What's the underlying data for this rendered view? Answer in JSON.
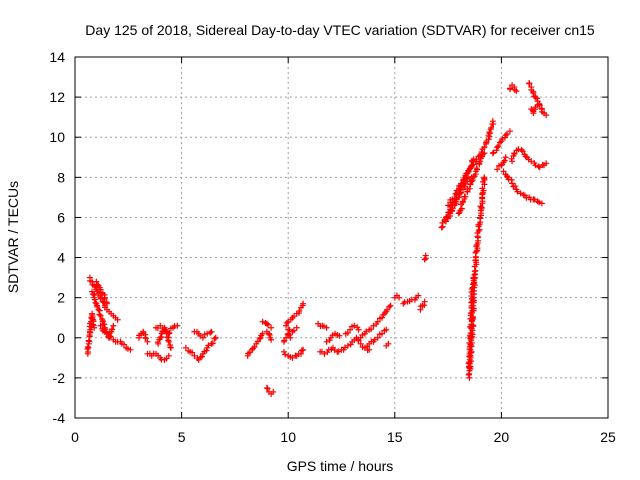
{
  "chart_data": {
    "type": "scatter",
    "title": "Day 125 of 2018, Sidereal Day-to-day VTEC variation (SDTVAR) for receiver cn15",
    "xlabel": "GPS time / hours",
    "ylabel": "SDTVAR / TECUs",
    "xlim": [
      0,
      25
    ],
    "ylim": [
      -4,
      14
    ],
    "xticks": [
      0,
      5,
      10,
      15,
      20,
      25
    ],
    "yticks": [
      -4,
      -2,
      0,
      2,
      4,
      6,
      8,
      10,
      12,
      14
    ],
    "grid": true,
    "marker": "+",
    "color": "#ff0000",
    "segments": [
      [
        [
          0.6,
          -0.8
        ],
        [
          0.65,
          -0.3
        ],
        [
          0.7,
          0.3
        ],
        [
          0.75,
          0.8
        ],
        [
          0.8,
          1.2
        ],
        [
          0.85,
          0.9
        ],
        [
          0.9,
          0.5
        ]
      ],
      [
        [
          0.7,
          3.0
        ],
        [
          0.8,
          2.8
        ],
        [
          0.9,
          2.6
        ],
        [
          1.0,
          2.4
        ],
        [
          1.1,
          2.2
        ],
        [
          1.2,
          2.0
        ],
        [
          1.3,
          1.8
        ],
        [
          1.4,
          1.6
        ],
        [
          1.5,
          1.4
        ],
        [
          1.6,
          1.3
        ],
        [
          1.7,
          1.2
        ],
        [
          1.8,
          1.1
        ],
        [
          1.9,
          1.0
        ],
        [
          2.0,
          0.9
        ]
      ],
      [
        [
          0.8,
          2.3
        ],
        [
          0.9,
          2.0
        ],
        [
          1.0,
          1.7
        ],
        [
          1.1,
          1.4
        ],
        [
          1.2,
          1.1
        ],
        [
          1.3,
          0.8
        ],
        [
          1.4,
          0.5
        ],
        [
          1.5,
          0.2
        ],
        [
          1.6,
          0.0
        ],
        [
          1.7,
          0.3
        ],
        [
          1.8,
          0.6
        ]
      ],
      [
        [
          1.0,
          2.8
        ],
        [
          1.1,
          2.6
        ],
        [
          1.2,
          2.4
        ],
        [
          1.3,
          2.2
        ],
        [
          1.4,
          2.0
        ],
        [
          1.5,
          1.7
        ]
      ],
      [
        [
          1.2,
          0.6
        ],
        [
          1.4,
          0.3
        ],
        [
          1.6,
          0.1
        ],
        [
          1.8,
          -0.1
        ],
        [
          2.0,
          -0.2
        ],
        [
          2.2,
          -0.3
        ],
        [
          2.4,
          -0.5
        ],
        [
          2.6,
          -0.6
        ]
      ],
      [
        [
          3.0,
          0.0
        ],
        [
          3.1,
          0.2
        ],
        [
          3.2,
          0.3
        ],
        [
          3.3,
          0.0
        ],
        [
          3.4,
          -0.2
        ]
      ],
      [
        [
          3.4,
          -0.8
        ],
        [
          3.6,
          -0.9
        ],
        [
          3.8,
          -0.8
        ],
        [
          4.0,
          -1.0
        ],
        [
          4.2,
          -1.1
        ],
        [
          4.4,
          -0.9
        ]
      ],
      [
        [
          3.8,
          0.5
        ],
        [
          4.0,
          0.6
        ],
        [
          4.2,
          0.4
        ],
        [
          4.4,
          0.2
        ],
        [
          4.6,
          0.5
        ],
        [
          4.8,
          0.6
        ]
      ],
      [
        [
          3.9,
          -0.3
        ],
        [
          4.0,
          0.0
        ],
        [
          4.1,
          0.3
        ],
        [
          4.2,
          0.5
        ],
        [
          4.3,
          0.2
        ],
        [
          4.4,
          -0.2
        ],
        [
          4.5,
          -0.5
        ]
      ],
      [
        [
          5.2,
          -0.5
        ],
        [
          5.4,
          -0.7
        ],
        [
          5.6,
          -0.9
        ],
        [
          5.8,
          -1.1
        ],
        [
          6.0,
          -0.8
        ],
        [
          6.2,
          -0.5
        ],
        [
          6.4,
          -0.3
        ],
        [
          6.6,
          0.0
        ]
      ],
      [
        [
          5.6,
          0.3
        ],
        [
          5.8,
          0.2
        ],
        [
          6.0,
          0.0
        ],
        [
          6.2,
          0.2
        ],
        [
          6.4,
          0.3
        ]
      ],
      [
        [
          8.1,
          -0.9
        ],
        [
          8.3,
          -0.6
        ],
        [
          8.5,
          -0.3
        ],
        [
          8.7,
          0.0
        ],
        [
          8.8,
          0.2
        ]
      ],
      [
        [
          8.8,
          0.8
        ],
        [
          9.0,
          0.7
        ],
        [
          9.2,
          0.5
        ]
      ],
      [
        [
          9.0,
          0.3
        ],
        [
          9.1,
          0.2
        ],
        [
          9.2,
          -0.1
        ]
      ],
      [
        [
          9.0,
          -2.5
        ],
        [
          9.1,
          -2.7
        ],
        [
          9.2,
          -2.8
        ],
        [
          9.3,
          -2.7
        ]
      ],
      [
        [
          9.8,
          -0.7
        ],
        [
          10.0,
          -0.9
        ],
        [
          10.2,
          -1.0
        ],
        [
          10.4,
          -0.9
        ],
        [
          10.6,
          -0.8
        ],
        [
          10.7,
          -0.6
        ]
      ],
      [
        [
          9.8,
          -0.2
        ],
        [
          9.9,
          0.0
        ],
        [
          10.0,
          0.2
        ],
        [
          10.1,
          0.0
        ]
      ],
      [
        [
          9.9,
          0.6
        ],
        [
          10.0,
          0.8
        ],
        [
          10.2,
          1.0
        ],
        [
          10.4,
          1.2
        ],
        [
          10.6,
          1.5
        ],
        [
          10.7,
          1.7
        ]
      ],
      [
        [
          10.0,
          0.4
        ],
        [
          10.2,
          0.3
        ],
        [
          10.4,
          0.5
        ]
      ],
      [
        [
          11.4,
          0.7
        ],
        [
          11.6,
          0.6
        ],
        [
          11.8,
          0.5
        ]
      ],
      [
        [
          11.5,
          -0.7
        ],
        [
          11.7,
          -0.8
        ],
        [
          11.9,
          -0.6
        ],
        [
          12.1,
          -0.5
        ],
        [
          12.3,
          -0.7
        ],
        [
          12.5,
          -0.6
        ]
      ],
      [
        [
          11.8,
          -0.2
        ],
        [
          12.0,
          0.0
        ],
        [
          12.2,
          0.2
        ],
        [
          12.4,
          0.1
        ]
      ],
      [
        [
          12.6,
          -0.6
        ],
        [
          12.8,
          -0.4
        ],
        [
          13.0,
          -0.2
        ],
        [
          13.2,
          0.0
        ],
        [
          13.4,
          -0.3
        ],
        [
          13.6,
          -0.5
        ],
        [
          13.8,
          -0.6
        ]
      ],
      [
        [
          12.7,
          0.2
        ],
        [
          12.9,
          0.4
        ],
        [
          13.1,
          0.6
        ],
        [
          13.3,
          0.4
        ]
      ],
      [
        [
          13.4,
          0.0
        ],
        [
          13.6,
          0.2
        ],
        [
          13.8,
          0.4
        ],
        [
          14.0,
          0.6
        ],
        [
          14.2,
          0.8
        ],
        [
          14.4,
          1.0
        ],
        [
          14.6,
          1.3
        ],
        [
          14.8,
          1.6
        ]
      ],
      [
        [
          13.6,
          -0.5
        ],
        [
          13.8,
          -0.3
        ],
        [
          14.0,
          -0.2
        ],
        [
          14.2,
          0.0
        ],
        [
          14.4,
          0.2
        ],
        [
          14.6,
          0.4
        ]
      ],
      [
        [
          14.6,
          -0.4
        ],
        [
          14.7,
          -0.3
        ]
      ],
      [
        [
          15.0,
          2.0
        ],
        [
          15.1,
          2.1
        ],
        [
          15.2,
          2.0
        ]
      ],
      [
        [
          15.4,
          1.7
        ],
        [
          15.6,
          1.8
        ],
        [
          15.8,
          1.9
        ],
        [
          16.0,
          2.0
        ],
        [
          16.1,
          2.1
        ]
      ],
      [
        [
          16.2,
          1.4
        ],
        [
          16.3,
          1.6
        ],
        [
          16.4,
          1.8
        ]
      ],
      [
        [
          16.4,
          3.9
        ],
        [
          16.45,
          4.1
        ]
      ],
      [
        [
          17.2,
          5.5
        ],
        [
          17.4,
          6.0
        ],
        [
          17.6,
          6.4
        ],
        [
          17.8,
          6.8
        ],
        [
          18.0,
          7.2
        ],
        [
          18.2,
          7.7
        ],
        [
          18.4,
          8.2
        ],
        [
          18.6,
          8.6
        ],
        [
          18.8,
          8.8
        ],
        [
          19.0,
          9.1
        ],
        [
          19.2,
          9.5
        ],
        [
          19.4,
          9.9
        ],
        [
          19.5,
          10.4
        ],
        [
          19.6,
          10.8
        ]
      ],
      [
        [
          17.4,
          5.8
        ],
        [
          17.6,
          6.2
        ],
        [
          17.8,
          6.6
        ],
        [
          18.0,
          7.0
        ],
        [
          18.2,
          7.4
        ],
        [
          18.4,
          7.8
        ],
        [
          18.6,
          8.0
        ]
      ],
      [
        [
          17.5,
          6.6
        ],
        [
          17.7,
          6.9
        ],
        [
          17.9,
          7.2
        ],
        [
          18.1,
          7.6
        ],
        [
          18.3,
          8.0
        ],
        [
          18.5,
          8.4
        ],
        [
          18.7,
          8.9
        ]
      ],
      [
        [
          18.0,
          6.2
        ],
        [
          18.2,
          6.8
        ],
        [
          18.4,
          7.3
        ],
        [
          18.6,
          7.8
        ],
        [
          18.8,
          8.3
        ],
        [
          19.0,
          8.8
        ],
        [
          19.2,
          9.2
        ]
      ],
      [
        [
          18.5,
          -2.0
        ],
        [
          18.55,
          -1.0
        ],
        [
          18.6,
          0.0
        ],
        [
          18.65,
          1.0
        ],
        [
          18.7,
          2.0
        ],
        [
          18.75,
          3.0
        ],
        [
          18.8,
          4.0
        ],
        [
          18.9,
          5.0
        ],
        [
          19.0,
          6.0
        ],
        [
          19.1,
          7.0
        ],
        [
          19.2,
          8.0
        ]
      ],
      [
        [
          18.5,
          -1.5
        ],
        [
          18.55,
          0.0
        ],
        [
          18.6,
          1.5
        ],
        [
          18.65,
          2.5
        ],
        [
          18.7,
          3.0
        ]
      ],
      [
        [
          19.6,
          9.2
        ],
        [
          19.8,
          9.5
        ],
        [
          20.0,
          9.8
        ],
        [
          20.2,
          10.1
        ],
        [
          20.4,
          10.3
        ]
      ],
      [
        [
          19.8,
          8.4
        ],
        [
          20.0,
          8.6
        ],
        [
          20.2,
          9.0
        ]
      ],
      [
        [
          20.1,
          8.3
        ],
        [
          20.3,
          8.0
        ],
        [
          20.5,
          7.7
        ],
        [
          20.7,
          7.4
        ],
        [
          20.9,
          7.2
        ],
        [
          21.1,
          7.1
        ],
        [
          21.3,
          7.0
        ],
        [
          21.5,
          6.9
        ],
        [
          21.7,
          6.8
        ],
        [
          21.9,
          6.7
        ]
      ],
      [
        [
          20.5,
          8.8
        ],
        [
          20.6,
          9.2
        ],
        [
          20.8,
          9.4
        ],
        [
          21.0,
          9.3
        ],
        [
          21.2,
          9.0
        ],
        [
          21.4,
          8.8
        ],
        [
          21.6,
          8.6
        ],
        [
          21.8,
          8.5
        ],
        [
          22.0,
          8.6
        ],
        [
          22.1,
          8.7
        ]
      ],
      [
        [
          20.4,
          12.4
        ],
        [
          20.5,
          12.6
        ],
        [
          20.6,
          12.5
        ],
        [
          20.7,
          12.3
        ]
      ],
      [
        [
          21.3,
          12.7
        ],
        [
          21.4,
          12.5
        ],
        [
          21.5,
          12.2
        ],
        [
          21.6,
          12.0
        ],
        [
          21.7,
          11.8
        ],
        [
          21.8,
          11.6
        ],
        [
          21.9,
          11.4
        ],
        [
          22.0,
          11.2
        ],
        [
          22.1,
          11.1
        ]
      ],
      [
        [
          21.4,
          11.4
        ],
        [
          21.5,
          11.2
        ],
        [
          21.6,
          11.5
        ],
        [
          21.7,
          11.6
        ]
      ]
    ]
  }
}
